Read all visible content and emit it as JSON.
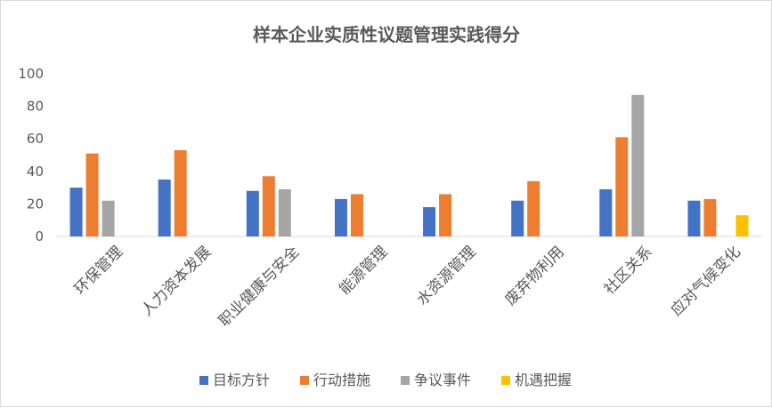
{
  "chart_data": {
    "type": "bar",
    "title": "样本企业实质性议题管理实践得分",
    "xlabel": "",
    "ylabel": "",
    "ylim": [
      0,
      100
    ],
    "yticks": [
      0,
      20,
      40,
      60,
      80,
      100
    ],
    "grid": false,
    "legend_position": "bottom",
    "categories": [
      "环保管理",
      "人力资本发展",
      "职业健康与安全",
      "能源管理",
      "水资源管理",
      "废弃物利用",
      "社区关系",
      "应对气候变化"
    ],
    "series": [
      {
        "name": "目标方针",
        "color": "#4472C4",
        "values": [
          30,
          35,
          28,
          23,
          18,
          22,
          29,
          22
        ]
      },
      {
        "name": "行动措施",
        "color": "#ED7D31",
        "values": [
          51,
          53,
          37,
          26,
          26,
          34,
          61,
          23
        ]
      },
      {
        "name": "争议事件",
        "color": "#A5A5A5",
        "values": [
          22,
          0,
          29,
          0,
          0,
          0,
          87,
          0
        ]
      },
      {
        "name": "机遇把握",
        "color": "#FFC000",
        "values": [
          0,
          0,
          0,
          0,
          0,
          0,
          0,
          13
        ]
      }
    ]
  }
}
